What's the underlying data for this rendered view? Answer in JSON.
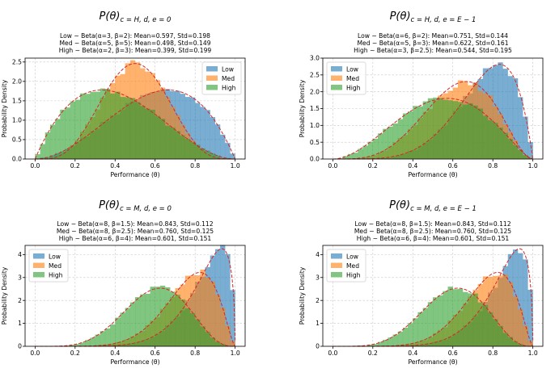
{
  "chart_data": [
    {
      "type": "histogram",
      "title": "P(θ)_{c=H, d, e=0}",
      "title_main": "P(θ)",
      "title_sub": "c = H, d, e = 0",
      "subtitle_lines": [
        "Low ~ Beta(α=3, β=2): Mean=0.597, Std=0.198",
        "Med ~ Beta(α=5, β=5): Mean=0.498, Std=0.149",
        "High ~ Beta(α=2, β=3): Mean=0.399, Std=0.199"
      ],
      "xlabel": "Performance (θ)",
      "ylabel": "Probability Density",
      "xlim": [
        -0.05,
        1.05
      ],
      "ylim": [
        0,
        2.6
      ],
      "xticks": [
        "0.0",
        "0.2",
        "0.4",
        "0.6",
        "0.8",
        "1.0"
      ],
      "yticks": [
        "0.0",
        "0.5",
        "1.0",
        "1.5",
        "2.0",
        "2.5"
      ],
      "grid": true,
      "legend_position": "upper right",
      "series": [
        {
          "name": "Low",
          "alpha": 3,
          "beta": 2,
          "color": "#1f77b4"
        },
        {
          "name": "Med",
          "alpha": 5,
          "beta": 5,
          "color": "#ff7f0e"
        },
        {
          "name": "High",
          "alpha": 2,
          "beta": 3,
          "color": "#2ca02c"
        }
      ]
    },
    {
      "type": "histogram",
      "title": "P(θ)_{c=H, d, e=E-1}",
      "title_main": "P(θ)",
      "title_sub": "c = H, d, e = E − 1",
      "subtitle_lines": [
        "Low ~ Beta(α=6, β=2): Mean=0.751, Std=0.144",
        "Med ~ Beta(α=5, β=3): Mean=0.622, Std=0.161",
        "High ~ Beta(α=3, β=2.5): Mean=0.544, Std=0.195"
      ],
      "xlabel": "Performance (θ)",
      "ylabel": "Probability Density",
      "xlim": [
        -0.05,
        1.05
      ],
      "ylim": [
        0,
        3.0
      ],
      "xticks": [
        "0.0",
        "0.2",
        "0.4",
        "0.6",
        "0.8",
        "1.0"
      ],
      "yticks": [
        "0.0",
        "0.5",
        "1.0",
        "1.5",
        "2.0",
        "2.5",
        "3.0"
      ],
      "grid": true,
      "legend_position": "upper left",
      "series": [
        {
          "name": "Low",
          "alpha": 6,
          "beta": 2,
          "color": "#1f77b4"
        },
        {
          "name": "Med",
          "alpha": 5,
          "beta": 3,
          "color": "#ff7f0e"
        },
        {
          "name": "High",
          "alpha": 3,
          "beta": 2.5,
          "color": "#2ca02c"
        }
      ]
    },
    {
      "type": "histogram",
      "title": "P(θ)_{c=M, d, e=0}",
      "title_main": "P(θ)",
      "title_sub": "c = M, d, e = 0",
      "subtitle_lines": [
        "Low ~ Beta(α=8, β=1.5): Mean=0.843, Std=0.112",
        "Med ~ Beta(α=8, β=2.5): Mean=0.760, Std=0.125",
        "High ~ Beta(α=6, β=4): Mean=0.601, Std=0.151"
      ],
      "xlabel": "Performance (θ)",
      "ylabel": "Probability Density",
      "xlim": [
        -0.05,
        1.05
      ],
      "ylim": [
        0,
        4.4
      ],
      "xticks": [
        "0.0",
        "0.2",
        "0.4",
        "0.6",
        "0.8",
        "1.0"
      ],
      "yticks": [
        "0",
        "1",
        "2",
        "3",
        "4"
      ],
      "grid": true,
      "legend_position": "upper left",
      "series": [
        {
          "name": "Low",
          "alpha": 8,
          "beta": 1.5,
          "color": "#1f77b4"
        },
        {
          "name": "Med",
          "alpha": 8,
          "beta": 2.5,
          "color": "#ff7f0e"
        },
        {
          "name": "High",
          "alpha": 6,
          "beta": 4,
          "color": "#2ca02c"
        }
      ]
    },
    {
      "type": "histogram",
      "title": "P(θ)_{c=M, d, e=E-1}",
      "title_main": "P(θ)",
      "title_sub": "c = M, d, e = E − 1",
      "subtitle_lines": [
        "Low ~ Beta(α=8, β=1.5): Mean=0.843, Std=0.112",
        "Med ~ Beta(α=8, β=2.5): Mean=0.760, Std=0.125",
        "High ~ Beta(α=6, β=4): Mean=0.601, Std=0.151"
      ],
      "xlabel": "Performance (θ)",
      "ylabel": "Probability Density",
      "xlim": [
        -0.05,
        1.05
      ],
      "ylim": [
        0,
        4.4
      ],
      "xticks": [
        "0.0",
        "0.2",
        "0.4",
        "0.6",
        "0.8",
        "1.0"
      ],
      "yticks": [
        "0",
        "1",
        "2",
        "3",
        "4"
      ],
      "grid": true,
      "legend_position": "upper left",
      "series": [
        {
          "name": "Low",
          "alpha": 8,
          "beta": 1.5,
          "color": "#1f77b4"
        },
        {
          "name": "Med",
          "alpha": 8,
          "beta": 2.5,
          "color": "#ff7f0e"
        },
        {
          "name": "High",
          "alpha": 6,
          "beta": 4,
          "color": "#2ca02c"
        }
      ]
    }
  ],
  "style": {
    "pdf_line_color": "#d62728",
    "grid_color": "#b0b0b0",
    "bins": 40
  }
}
